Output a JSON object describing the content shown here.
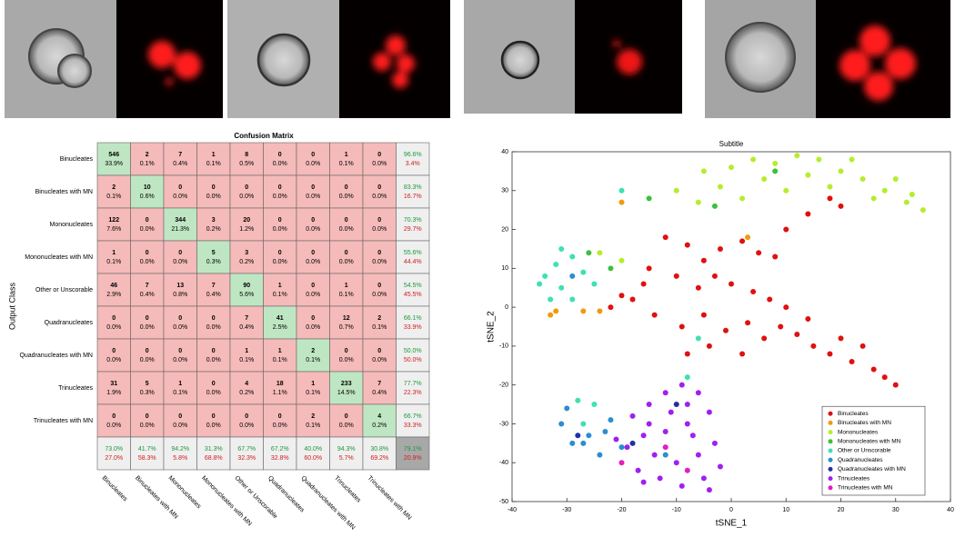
{
  "confusion_matrix": {
    "title": "Confusion Matrix",
    "ylabel": "Output Class",
    "classes": [
      "Binucleates",
      "Binucleates with MN",
      "Mononucleates",
      "Mononucleates with MN",
      "Other or Unscorable",
      "Quadranucleates",
      "Quadranucleates with MN",
      "Trinucleates",
      "Trinucleates with MN"
    ],
    "cells": [
      [
        [
          546,
          "33.9%"
        ],
        [
          2,
          "0.1%"
        ],
        [
          7,
          "0.4%"
        ],
        [
          1,
          "0.1%"
        ],
        [
          8,
          "0.5%"
        ],
        [
          0,
          "0.0%"
        ],
        [
          0,
          "0.0%"
        ],
        [
          1,
          "0.1%"
        ],
        [
          0,
          "0.0%"
        ]
      ],
      [
        [
          2,
          "0.1%"
        ],
        [
          10,
          "0.6%"
        ],
        [
          0,
          "0.0%"
        ],
        [
          0,
          "0.0%"
        ],
        [
          0,
          "0.0%"
        ],
        [
          0,
          "0.0%"
        ],
        [
          0,
          "0.0%"
        ],
        [
          0,
          "0.0%"
        ],
        [
          0,
          "0.0%"
        ]
      ],
      [
        [
          122,
          "7.6%"
        ],
        [
          0,
          "0.0%"
        ],
        [
          344,
          "21.3%"
        ],
        [
          3,
          "0.2%"
        ],
        [
          20,
          "1.2%"
        ],
        [
          0,
          "0.0%"
        ],
        [
          0,
          "0.0%"
        ],
        [
          0,
          "0.0%"
        ],
        [
          0,
          "0.0%"
        ]
      ],
      [
        [
          1,
          "0.1%"
        ],
        [
          0,
          "0.0%"
        ],
        [
          0,
          "0.0%"
        ],
        [
          5,
          "0.3%"
        ],
        [
          3,
          "0.2%"
        ],
        [
          0,
          "0.0%"
        ],
        [
          0,
          "0.0%"
        ],
        [
          0,
          "0.0%"
        ],
        [
          0,
          "0.0%"
        ]
      ],
      [
        [
          46,
          "2.9%"
        ],
        [
          7,
          "0.4%"
        ],
        [
          13,
          "0.8%"
        ],
        [
          7,
          "0.4%"
        ],
        [
          90,
          "5.6%"
        ],
        [
          1,
          "0.1%"
        ],
        [
          0,
          "0.0%"
        ],
        [
          1,
          "0.1%"
        ],
        [
          0,
          "0.0%"
        ]
      ],
      [
        [
          0,
          "0.0%"
        ],
        [
          0,
          "0.0%"
        ],
        [
          0,
          "0.0%"
        ],
        [
          0,
          "0.0%"
        ],
        [
          7,
          "0.4%"
        ],
        [
          41,
          "2.5%"
        ],
        [
          0,
          "0.0%"
        ],
        [
          12,
          "0.7%"
        ],
        [
          2,
          "0.1%"
        ]
      ],
      [
        [
          0,
          "0.0%"
        ],
        [
          0,
          "0.0%"
        ],
        [
          0,
          "0.0%"
        ],
        [
          0,
          "0.0%"
        ],
        [
          1,
          "0.1%"
        ],
        [
          1,
          "0.1%"
        ],
        [
          2,
          "0.1%"
        ],
        [
          0,
          "0.0%"
        ],
        [
          0,
          "0.0%"
        ]
      ],
      [
        [
          31,
          "1.9%"
        ],
        [
          5,
          "0.3%"
        ],
        [
          1,
          "0.1%"
        ],
        [
          0,
          "0.0%"
        ],
        [
          4,
          "0.2%"
        ],
        [
          18,
          "1.1%"
        ],
        [
          1,
          "0.1%"
        ],
        [
          233,
          "14.5%"
        ],
        [
          7,
          "0.4%"
        ]
      ],
      [
        [
          0,
          "0.0%"
        ],
        [
          0,
          "0.0%"
        ],
        [
          0,
          "0.0%"
        ],
        [
          0,
          "0.0%"
        ],
        [
          0,
          "0.0%"
        ],
        [
          0,
          "0.0%"
        ],
        [
          2,
          "0.1%"
        ],
        [
          0,
          "0.0%"
        ],
        [
          4,
          "0.2%"
        ]
      ]
    ],
    "row_summary": [
      [
        "96.6%",
        "3.4%"
      ],
      [
        "83.3%",
        "16.7%"
      ],
      [
        "70.3%",
        "29.7%"
      ],
      [
        "55.6%",
        "44.4%"
      ],
      [
        "54.5%",
        "45.5%"
      ],
      [
        "66.1%",
        "33.9%"
      ],
      [
        "50.0%",
        "50.0%"
      ],
      [
        "77.7%",
        "22.3%"
      ],
      [
        "66.7%",
        "33.3%"
      ]
    ],
    "col_summary": [
      [
        "73.0%",
        "27.0%"
      ],
      [
        "41.7%",
        "58.3%"
      ],
      [
        "94.2%",
        "5.8%"
      ],
      [
        "31.3%",
        "68.8%"
      ],
      [
        "67.7%",
        "32.3%"
      ],
      [
        "67.2%",
        "32.8%"
      ],
      [
        "40.0%",
        "60.0%"
      ],
      [
        "94.3%",
        "5.7%"
      ],
      [
        "30.8%",
        "69.2%"
      ]
    ],
    "total": [
      "79.1%",
      "20.9%"
    ]
  },
  "chart_data": {
    "type": "scatter",
    "title": "Subtitle",
    "xlabel": "tSNE_1",
    "ylabel": "tSNE_2",
    "xlim": [
      -40,
      40
    ],
    "ylim": [
      -50,
      40
    ],
    "xticks": [
      -40,
      -30,
      -20,
      -10,
      0,
      10,
      20,
      30,
      40
    ],
    "yticks": [
      -50,
      -40,
      -30,
      -20,
      -10,
      0,
      10,
      20,
      30,
      40
    ],
    "legend": "lower right",
    "series": [
      {
        "name": "Binucleates",
        "color": "#e01010",
        "x": [
          -12,
          -8,
          -5,
          -2,
          2,
          5,
          8,
          -15,
          -10,
          -6,
          -3,
          0,
          4,
          7,
          10,
          -18,
          -14,
          -9,
          -5,
          -1,
          3,
          6,
          9,
          12,
          15,
          18,
          22,
          26,
          30,
          28,
          24,
          20,
          14,
          -4,
          -8,
          2,
          10,
          14,
          18,
          20,
          -22,
          -20,
          -16
        ],
        "values": [
          18,
          16,
          12,
          15,
          17,
          14,
          13,
          10,
          8,
          5,
          8,
          6,
          4,
          2,
          0,
          2,
          -2,
          -5,
          -2,
          -6,
          -4,
          -8,
          -5,
          -7,
          -10,
          -12,
          -14,
          -16,
          -20,
          -18,
          -10,
          -8,
          -3,
          -10,
          -12,
          -12,
          20,
          24,
          28,
          26,
          0,
          3,
          6
        ]
      },
      {
        "name": "Binucleates with MN",
        "color": "#f09a10",
        "x": [
          -33,
          -32,
          -24,
          -27,
          -20,
          3
        ],
        "values": [
          -2,
          -1,
          -1,
          -1,
          27,
          18
        ]
      },
      {
        "name": "Mononucleates",
        "color": "#b4ee2c",
        "x": [
          0,
          4,
          8,
          12,
          16,
          20,
          24,
          28,
          32,
          35,
          30,
          22,
          14,
          6,
          -2,
          -6,
          -10,
          10,
          18,
          26,
          33,
          -24,
          -20,
          -5,
          2
        ],
        "values": [
          36,
          38,
          37,
          39,
          38,
          35,
          33,
          30,
          27,
          25,
          33,
          38,
          34,
          33,
          31,
          27,
          30,
          30,
          31,
          28,
          29,
          14,
          12,
          35,
          28
        ]
      },
      {
        "name": "Mononucleates with MN",
        "color": "#3cc03c",
        "x": [
          -22,
          -15,
          -3,
          8,
          -26
        ],
        "values": [
          10,
          28,
          26,
          35,
          14
        ]
      },
      {
        "name": "Other or Unscorable",
        "color": "#3ee0b4",
        "x": [
          -34,
          -32,
          -29,
          -31,
          -27,
          -25,
          -33,
          -29,
          -35,
          -31,
          -20,
          -27,
          -25,
          -28,
          -8,
          -6
        ],
        "values": [
          8,
          11,
          13,
          5,
          9,
          6,
          2,
          2,
          6,
          15,
          30,
          -30,
          -25,
          -24,
          -18,
          -8
        ]
      },
      {
        "name": "Quadranucleates",
        "color": "#2a8ed0",
        "x": [
          -31,
          -29,
          -26,
          -23,
          -20,
          -30,
          -27,
          -24,
          -22,
          -29,
          -12
        ],
        "values": [
          -30,
          -35,
          -33,
          -32,
          -36,
          -26,
          -35,
          -38,
          -29,
          8,
          -38
        ]
      },
      {
        "name": "Quadranucleates with MN",
        "color": "#2030a8",
        "x": [
          -28,
          -18,
          -10
        ],
        "values": [
          -33,
          -35,
          -25
        ]
      },
      {
        "name": "Trinucleates",
        "color": "#a020f0",
        "x": [
          -18,
          -15,
          -12,
          -9,
          -6,
          -4,
          -8,
          -12,
          -16,
          -19,
          -14,
          -10,
          -6,
          -3,
          -5,
          -9,
          -13,
          -17,
          -7,
          -11,
          -15,
          -2,
          -4,
          -8,
          -21,
          -16
        ],
        "values": [
          -28,
          -25,
          -22,
          -20,
          -22,
          -27,
          -30,
          -32,
          -33,
          -36,
          -38,
          -40,
          -38,
          -35,
          -44,
          -46,
          -44,
          -42,
          -33,
          -27,
          -30,
          -41,
          -47,
          -25,
          -34,
          -45
        ]
      },
      {
        "name": "Trinucleates with MN",
        "color": "#e020c0",
        "x": [
          -12,
          -8,
          -20
        ],
        "values": [
          -36,
          -42,
          -40
        ]
      }
    ]
  }
}
